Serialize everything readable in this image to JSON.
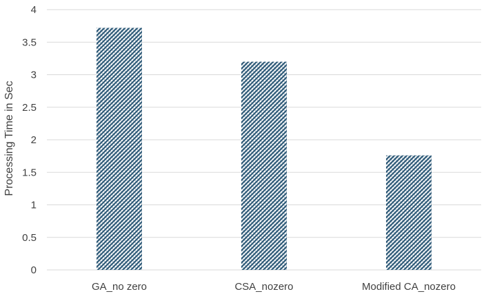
{
  "chart_data": {
    "type": "bar",
    "title": "",
    "xlabel": "",
    "ylabel": "Processing Time in Sec",
    "categories": [
      "GA_no zero",
      "CSA_nozero",
      "Modified CA_nozero"
    ],
    "values": [
      3.72,
      3.2,
      1.76
    ],
    "ylim": [
      0,
      4
    ],
    "yticks": [
      "0",
      "0.5",
      "1",
      "1.5",
      "2",
      "2.5",
      "3",
      "3.5",
      "4"
    ],
    "grid": true,
    "legend": "none",
    "colors": {
      "bar_pattern_dark": "#2e5a78",
      "bar_pattern_light": "#ffffff",
      "gridline": "#d9d9d9",
      "text": "#404040"
    }
  }
}
